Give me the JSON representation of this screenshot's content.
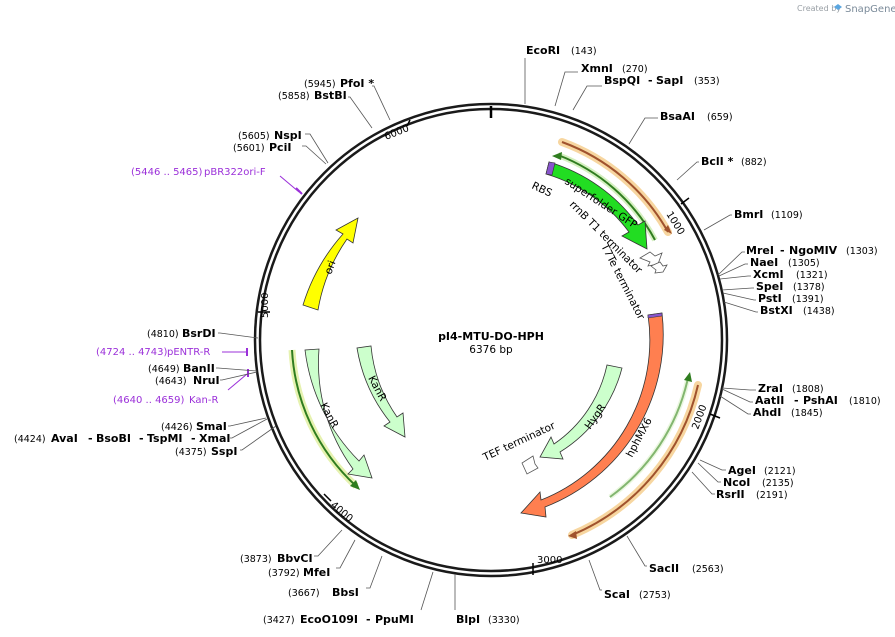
{
  "watermark": {
    "created_by": "Created by",
    "brand": "SnapGene"
  },
  "plasmid": {
    "name": "pI4-MTU-DO-HPH",
    "size_label": "6376 bp"
  },
  "scale_ticks": [
    "1000",
    "2000",
    "3000",
    "4000",
    "5000",
    "6000"
  ],
  "enzymes": {
    "ecori": {
      "name": "EcoRI",
      "pos": "(143)"
    },
    "xmni": {
      "name": "XmnI",
      "pos": "(270)"
    },
    "bspqi": {
      "name": "BspQI",
      "pos": "(353)",
      "alt": "SapI"
    },
    "bsaai": {
      "name": "BsaAI",
      "pos": "(659)"
    },
    "bcli": {
      "name": "BclI *",
      "pos": "(882)"
    },
    "bmri": {
      "name": "BmrI",
      "pos": "(1109)"
    },
    "mrei": {
      "name": "MreI",
      "pos": "(1303)",
      "alt": "NgoMIV"
    },
    "naei": {
      "name": "NaeI",
      "pos": "(1305)"
    },
    "xcmi": {
      "name": "XcmI",
      "pos": "(1321)"
    },
    "spei": {
      "name": "SpeI",
      "pos": "(1378)"
    },
    "psti": {
      "name": "PstI",
      "pos": "(1391)"
    },
    "bstxi": {
      "name": "BstXI",
      "pos": "(1438)"
    },
    "zrai": {
      "name": "ZraI",
      "pos": "(1808)"
    },
    "aatii": {
      "name": "AatII",
      "pos": "(1810)",
      "alt": "PshAI"
    },
    "ahdi": {
      "name": "AhdI",
      "pos": "(1845)"
    },
    "agei": {
      "name": "AgeI",
      "pos": "(2121)"
    },
    "ncoi": {
      "name": "NcoI",
      "pos": "(2135)"
    },
    "rsrii": {
      "name": "RsrII",
      "pos": "(2191)"
    },
    "sacii": {
      "name": "SacII",
      "pos": "(2563)"
    },
    "scai": {
      "name": "ScaI",
      "pos": "(2753)"
    },
    "blpi": {
      "name": "BlpI",
      "pos": "(3330)"
    },
    "eco109i": {
      "name": "EcoO109I",
      "pos": "(3427)",
      "alt": "PpuMI"
    },
    "bbsi": {
      "name": "BbsI",
      "pos": "(3667)"
    },
    "mfei": {
      "name": "MfeI",
      "pos": "(3792)"
    },
    "bbvci": {
      "name": "BbvCI",
      "pos": "(3873)"
    },
    "sspi": {
      "name": "SspI",
      "pos": "(4375)"
    },
    "avai": {
      "name": "AvaI",
      "pos": "(4424)",
      "alt1": "BsoBI",
      "alt2": "TspMI",
      "alt3": "XmaI"
    },
    "smai": {
      "name": "SmaI",
      "pos": "(4426)"
    },
    "nrui": {
      "name": "NruI",
      "pos": "(4643)"
    },
    "banii": {
      "name": "BanII",
      "pos": "(4649)"
    },
    "bsrdi": {
      "name": "BsrDI",
      "pos": "(4810)"
    },
    "pcii": {
      "name": "PciI",
      "pos": "(5601)"
    },
    "nspi": {
      "name": "NspI",
      "pos": "(5605)"
    },
    "bstbi": {
      "name": "BstBI",
      "pos": "(5858)"
    },
    "pfoi": {
      "name": "PfoI *",
      "pos": "(5945)"
    }
  },
  "primers": {
    "pbr322": {
      "range": "(5446 .. 5465)",
      "name": "pBR322ori-F"
    },
    "pentr": {
      "range": "(4724 .. 4743)",
      "name": "pENTR-R"
    },
    "kan": {
      "range": "(4640 .. 4659)",
      "name": "Kan-R"
    }
  },
  "features": {
    "rbs": "RBS",
    "sfgfp": "superfolder GFP",
    "rrnb": "rrnB T1 terminator",
    "t7te": "T7Te terminator",
    "ori": "ori",
    "kanr_outer": "KanR",
    "kanr_inner": "KanR",
    "hygr": "HygR",
    "hphmx6": "hphMX6",
    "tef": "TEF terminator"
  },
  "colors": {
    "backbone": "#1a1a1a",
    "gfp": "#22dd22",
    "ori": "#ffff00",
    "kanr": "#ccffcc",
    "hph": "#ff7f50",
    "primer": "#9b30d9",
    "orf_dark": "#2f7d1f",
    "orf_highlight": "#f7d6a0",
    "orf_brown": "#a0522d"
  }
}
